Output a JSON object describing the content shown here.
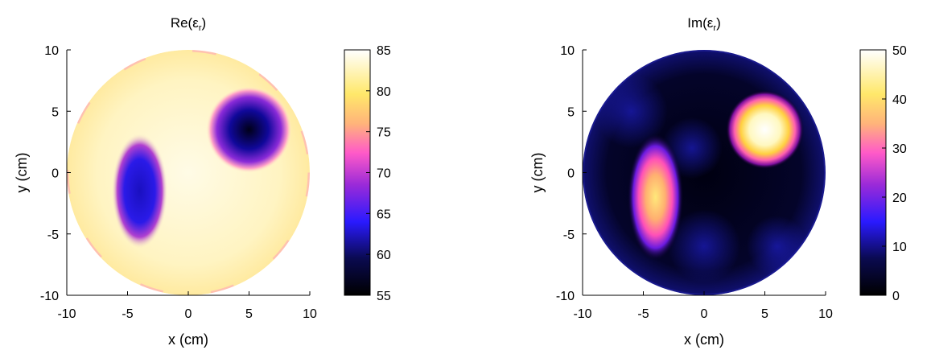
{
  "chart_data": [
    {
      "type": "heatmap",
      "title_main": "Re(ε",
      "title_sub": "r",
      "title_end": ")",
      "xlabel": "x (cm)",
      "ylabel": "y (cm)",
      "xlim": [
        -10,
        10
      ],
      "ylim": [
        -10,
        10
      ],
      "x_ticks": [
        "-10",
        "-5",
        "0",
        "5",
        "10"
      ],
      "y_ticks": [
        "10",
        "5",
        "0",
        "-5",
        "-10"
      ],
      "domain": "circle radius 10 cm",
      "background_value": 83,
      "features": [
        {
          "shape": "disk",
          "center": [
            5,
            3.5
          ],
          "radius": 2.2,
          "value": 55
        },
        {
          "shape": "elongated",
          "center": [
            -4,
            -1
          ],
          "extent_y": [
            -5,
            2
          ],
          "value": 60
        }
      ],
      "colorbar": {
        "min": 55,
        "max": 85,
        "ticks": [
          "85",
          "80",
          "75",
          "70",
          "65",
          "60",
          "55"
        ],
        "colormap": "gnuplot (black-blue-purple-pink-yellow-white)"
      }
    },
    {
      "type": "heatmap",
      "title_main": "Im(ε",
      "title_sub": "r",
      "title_end": ")",
      "xlabel": "x (cm)",
      "ylabel": "y (cm)",
      "xlim": [
        -10,
        10
      ],
      "ylim": [
        -10,
        10
      ],
      "x_ticks": [
        "-10",
        "-5",
        "0",
        "5",
        "10"
      ],
      "y_ticks": [
        "10",
        "5",
        "0",
        "-5",
        "-10"
      ],
      "domain": "circle radius 10 cm",
      "background_value": 2,
      "features": [
        {
          "shape": "disk",
          "center": [
            5,
            3.5
          ],
          "radius": 2.0,
          "value": 50
        },
        {
          "shape": "elongated",
          "center": [
            -4,
            -2
          ],
          "extent_y": [
            -6,
            2
          ],
          "value": 38
        }
      ],
      "colorbar": {
        "min": 0,
        "max": 50,
        "ticks": [
          "50",
          "40",
          "30",
          "20",
          "10",
          "0"
        ],
        "colormap": "gnuplot (black-blue-purple-pink-yellow-white)"
      }
    }
  ]
}
